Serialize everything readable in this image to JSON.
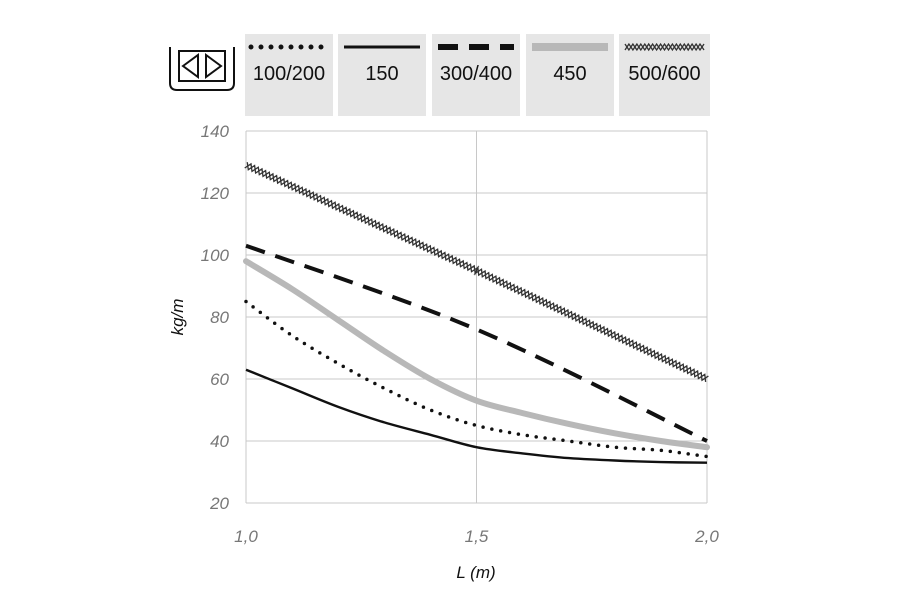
{
  "chart_data": {
    "type": "line",
    "xlabel": "L (m)",
    "ylabel": "kg/m",
    "xlim": [
      1.0,
      2.0
    ],
    "ylim": [
      20,
      140
    ],
    "x_ticks": [
      {
        "value": 1.0,
        "label": "1,0"
      },
      {
        "value": 1.5,
        "label": "1,5"
      },
      {
        "value": 2.0,
        "label": "2,0"
      }
    ],
    "y_ticks": [
      {
        "value": 20,
        "label": "20"
      },
      {
        "value": 40,
        "label": "40"
      },
      {
        "value": 60,
        "label": "60"
      },
      {
        "value": 80,
        "label": "80"
      },
      {
        "value": 100,
        "label": "100"
      },
      {
        "value": 120,
        "label": "120"
      },
      {
        "value": 140,
        "label": "140"
      }
    ],
    "grid": true,
    "legend_position": "top",
    "series": [
      {
        "name": "100/200",
        "style": "dotted",
        "color": "#111111",
        "x": [
          1.0,
          1.1,
          1.2,
          1.3,
          1.4,
          1.5,
          1.6,
          1.7,
          1.8,
          1.9,
          2.0
        ],
        "values": [
          85,
          74,
          65,
          57,
          50,
          45,
          42,
          40,
          38,
          37,
          35
        ]
      },
      {
        "name": "150",
        "style": "solid",
        "color": "#111111",
        "x": [
          1.0,
          1.1,
          1.2,
          1.3,
          1.4,
          1.5,
          1.6,
          1.7,
          1.8,
          1.9,
          2.0
        ],
        "values": [
          63,
          57,
          51,
          46,
          42,
          38,
          36,
          34.5,
          33.7,
          33.2,
          33
        ]
      },
      {
        "name": "300/400",
        "style": "dashed",
        "color": "#111111",
        "x": [
          1.0,
          1.5,
          2.0
        ],
        "values": [
          103,
          76,
          40
        ]
      },
      {
        "name": "450",
        "style": "thick",
        "color": "#b8b8b8",
        "x": [
          1.0,
          1.1,
          1.2,
          1.3,
          1.4,
          1.5,
          1.6,
          1.7,
          1.8,
          1.9,
          2.0
        ],
        "values": [
          98,
          89,
          79,
          69,
          60,
          53,
          49,
          45.5,
          42.5,
          40,
          38
        ]
      },
      {
        "name": "500/600",
        "style": "zigzag",
        "color": "#333333",
        "x": [
          1.0,
          1.5,
          2.0
        ],
        "values": [
          129,
          95,
          60
        ]
      }
    ]
  }
}
